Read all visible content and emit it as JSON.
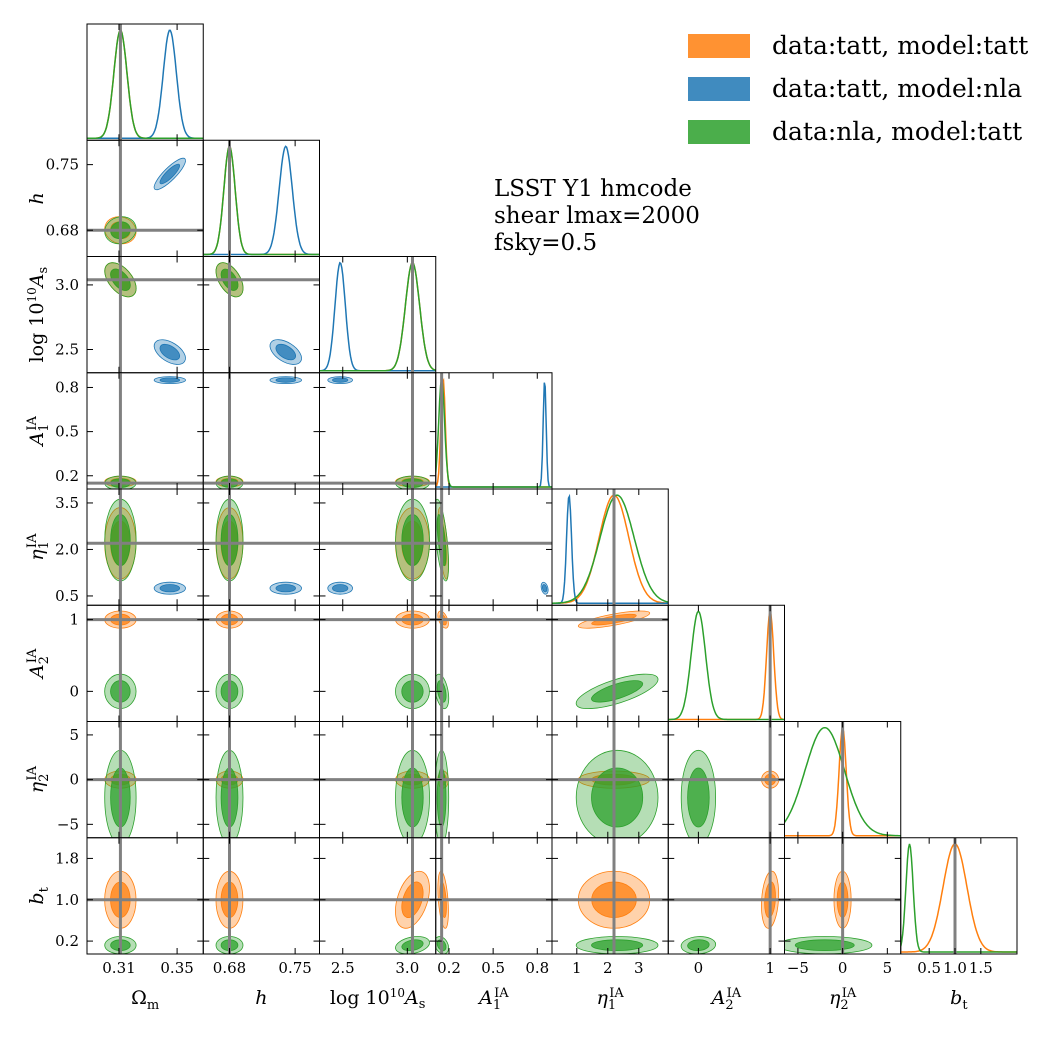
{
  "chart_data": {
    "type": "corner",
    "parameters": [
      {
        "key": "om",
        "label": "Ωm",
        "ticks": [
          0.31,
          0.35
        ],
        "tick_labels": [
          "0.31",
          "0.35"
        ],
        "range": [
          0.288,
          0.368
        ],
        "truth": 0.311
      },
      {
        "key": "h",
        "label": "h",
        "ticks": [
          0.68,
          0.75
        ],
        "tick_labels": [
          "0.68",
          "0.75"
        ],
        "range": [
          0.652,
          0.776
        ],
        "truth": 0.68
      },
      {
        "key": "as",
        "label": "log10^10 As",
        "ticks": [
          2.5,
          3.0
        ],
        "tick_labels": [
          "2.5",
          "3.0"
        ],
        "range": [
          2.32,
          3.22
        ],
        "truth": 3.04
      },
      {
        "key": "a1",
        "label": "A1 IA",
        "ticks": [
          0.2,
          0.5,
          0.8
        ],
        "tick_labels": [
          "0.2",
          "0.5",
          "0.8"
        ],
        "range": [
          0.11,
          0.9
        ],
        "truth": 0.15
      },
      {
        "key": "eta1",
        "label": "η1 IA",
        "ticks": [
          1,
          2,
          3
        ],
        "tick_labels": [
          "1",
          "2",
          "3"
        ],
        "range": [
          0.2,
          3.95
        ],
        "tick_labels_y": [
          "0.5",
          "2.0",
          "3.5"
        ],
        "ticks_y": [
          0.5,
          2.0,
          3.5
        ],
        "truth": 2.2
      },
      {
        "key": "a2",
        "label": "A2 IA",
        "ticks": [
          0,
          1
        ],
        "tick_labels": [
          "0",
          "1"
        ],
        "range": [
          -0.42,
          1.2
        ],
        "truth": 1.0
      },
      {
        "key": "eta2",
        "label": "η2 IA",
        "ticks": [
          -5,
          0,
          5
        ],
        "tick_labels": [
          "−5",
          "0",
          "5"
        ],
        "range": [
          -6.5,
          6.5
        ],
        "truth": 0.0
      },
      {
        "key": "bt",
        "label": "bt",
        "ticks": [
          0.2,
          1.0,
          1.8
        ],
        "tick_labels": [
          "0.2",
          "1.0",
          "1.8"
        ],
        "xticks": [
          0.5,
          1.0,
          1.5
        ],
        "xtick_labels": [
          "0.5",
          "1.0",
          "1.5"
        ],
        "range": [
          -0.05,
          2.2
        ],
        "truth": 1.0
      }
    ],
    "series": [
      {
        "name": "data:tatt, model:tatt",
        "color": "#ff7f0e",
        "mean": [
          0.311,
          0.68,
          3.04,
          0.16,
          2.2,
          1.0,
          0.0,
          1.0
        ],
        "sd": [
          0.0045,
          0.006,
          0.055,
          0.015,
          0.48,
          0.05,
          0.4,
          0.23
        ]
      },
      {
        "name": "data:tatt, model:nla",
        "color": "#1f77b4",
        "mean": [
          0.345,
          0.74,
          2.48,
          0.85,
          0.75,
          null,
          null,
          null
        ],
        "sd": [
          0.0045,
          0.007,
          0.04,
          0.01,
          0.08,
          null,
          null,
          null
        ]
      },
      {
        "name": "data:nla, model:tatt",
        "color": "#2ca02c",
        "mean": [
          0.311,
          0.68,
          3.04,
          0.15,
          2.3,
          0.0,
          -2.0,
          0.12
        ],
        "sd": [
          0.0045,
          0.006,
          0.055,
          0.02,
          0.55,
          0.1,
          2.2,
          0.07
        ]
      }
    ],
    "info_lines": [
      "LSST Y1 hmcode",
      "shear lmax=2000",
      "fsky=0.5"
    ],
    "legend_position": "top-right"
  }
}
